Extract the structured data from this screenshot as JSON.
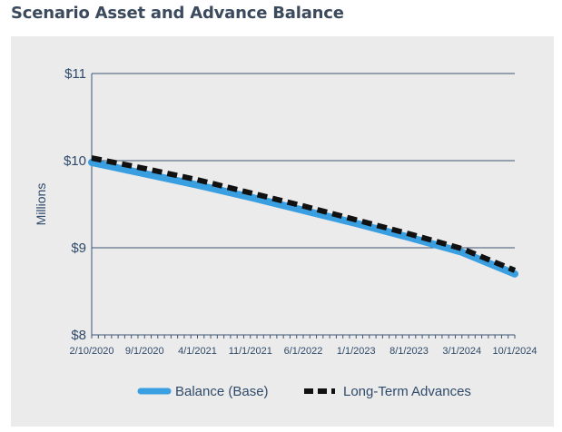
{
  "chart_data": {
    "type": "line",
    "title": "Scenario Asset and Advance Balance",
    "xlabel": "",
    "ylabel": "Millions",
    "ylim": [
      8,
      11
    ],
    "y_ticks": [
      "$8",
      "$9",
      "$10",
      "$11"
    ],
    "y_tick_values": [
      8,
      9,
      10,
      11
    ],
    "categories": [
      "2/10/2020",
      "9/1/2020",
      "4/1/2021",
      "11/1/2021",
      "6/1/2022",
      "1/1/2023",
      "8/1/2023",
      "3/1/2024",
      "10/1/2024"
    ],
    "grid": "horizontal",
    "legend": "bottom",
    "series": [
      {
        "name": "Balance (Base)",
        "color": "#3a9fe0",
        "style": "solid",
        "values": [
          9.98,
          9.85,
          9.72,
          9.58,
          9.43,
          9.28,
          9.12,
          8.95,
          8.7
        ]
      },
      {
        "name": "Long-Term Advances",
        "color": "#111111",
        "style": "dashed",
        "values": [
          10.03,
          9.91,
          9.78,
          9.63,
          9.48,
          9.32,
          9.16,
          8.99,
          8.74
        ]
      }
    ]
  }
}
